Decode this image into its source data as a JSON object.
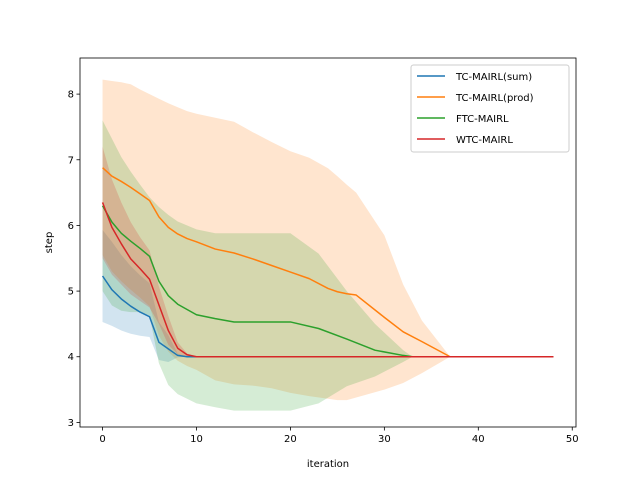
{
  "chart_data": {
    "type": "line",
    "title": "",
    "xlabel": "iteration",
    "ylabel": "step",
    "xlim": [
      -2.4,
      50.4
    ],
    "ylim": [
      2.93,
      8.55
    ],
    "xticks": [
      0,
      10,
      20,
      30,
      40,
      50
    ],
    "yticks": [
      3,
      4,
      5,
      6,
      7,
      8
    ],
    "grid": false,
    "legend_position": "upper right",
    "series": [
      {
        "name": "TC-MAIRL(sum)",
        "color": "#1f77b4",
        "x": [
          0,
          1,
          2,
          3,
          4,
          5,
          6,
          7,
          8,
          9,
          10,
          48
        ],
        "mean": [
          5.23,
          5.02,
          4.88,
          4.77,
          4.68,
          4.61,
          4.22,
          4.12,
          4.02,
          4.0,
          4.0,
          4.0
        ],
        "upper": [
          5.93,
          5.75,
          5.55,
          5.38,
          5.24,
          5.12,
          4.53,
          4.33,
          4.05,
          4.0,
          4.0,
          4.0
        ],
        "lower": [
          4.53,
          4.47,
          4.4,
          4.35,
          4.32,
          4.3,
          3.95,
          3.92,
          3.99,
          4.0,
          4.0,
          4.0
        ]
      },
      {
        "name": "TC-MAIRL(prod)",
        "color": "#ff7f0e",
        "x": [
          0,
          1,
          2,
          3,
          4,
          5,
          6,
          7,
          8,
          9,
          10,
          12,
          14,
          16,
          18,
          20,
          22,
          24,
          25,
          26,
          27,
          30,
          32,
          34,
          37,
          48
        ],
        "mean": [
          6.88,
          6.75,
          6.67,
          6.58,
          6.48,
          6.38,
          6.13,
          5.97,
          5.87,
          5.8,
          5.75,
          5.64,
          5.58,
          5.49,
          5.39,
          5.29,
          5.19,
          5.04,
          4.99,
          4.96,
          4.94,
          4.6,
          4.38,
          4.23,
          4.0,
          4.0
        ],
        "upper": [
          8.22,
          8.2,
          8.18,
          8.15,
          8.07,
          8.0,
          7.93,
          7.86,
          7.8,
          7.74,
          7.7,
          7.64,
          7.58,
          7.42,
          7.27,
          7.13,
          7.03,
          6.87,
          6.75,
          6.62,
          6.5,
          5.85,
          5.1,
          4.55,
          4.0,
          4.0
        ],
        "lower": [
          5.55,
          5.3,
          5.15,
          5.02,
          4.9,
          4.77,
          4.32,
          4.08,
          3.94,
          3.86,
          3.8,
          3.64,
          3.58,
          3.56,
          3.52,
          3.45,
          3.4,
          3.36,
          3.34,
          3.34,
          3.38,
          3.5,
          3.6,
          3.75,
          4.0,
          4.0
        ]
      },
      {
        "name": "FTC-MAIRL",
        "color": "#2ca02c",
        "x": [
          0,
          1,
          2,
          3,
          4,
          5,
          6,
          7,
          8,
          10,
          12,
          14,
          16,
          18,
          20,
          23,
          26,
          29,
          32,
          33,
          48
        ],
        "mean": [
          6.3,
          6.05,
          5.88,
          5.76,
          5.65,
          5.53,
          5.15,
          4.93,
          4.8,
          4.64,
          4.58,
          4.53,
          4.53,
          4.53,
          4.53,
          4.43,
          4.27,
          4.1,
          4.02,
          4.0,
          4.0
        ],
        "upper": [
          7.6,
          7.32,
          7.04,
          6.82,
          6.62,
          6.43,
          6.28,
          6.16,
          6.06,
          5.94,
          5.88,
          5.88,
          5.88,
          5.88,
          5.88,
          5.57,
          5.0,
          4.5,
          4.1,
          4.0,
          4.0
        ],
        "lower": [
          5.0,
          4.78,
          4.7,
          4.68,
          4.68,
          4.63,
          3.9,
          3.57,
          3.43,
          3.29,
          3.23,
          3.18,
          3.18,
          3.18,
          3.18,
          3.29,
          3.55,
          3.7,
          3.92,
          4.0,
          4.0
        ]
      },
      {
        "name": "WTC-MAIRL",
        "color": "#d62728",
        "x": [
          0,
          1,
          2,
          3,
          4,
          5,
          6,
          7,
          8,
          9,
          10,
          48
        ],
        "mean": [
          6.35,
          5.97,
          5.72,
          5.49,
          5.34,
          5.18,
          4.79,
          4.4,
          4.13,
          4.03,
          4.0,
          4.0
        ],
        "upper": [
          7.2,
          6.7,
          6.35,
          6.05,
          5.82,
          5.62,
          5.07,
          4.62,
          4.22,
          4.05,
          4.0,
          4.0
        ],
        "lower": [
          5.5,
          5.25,
          5.1,
          4.95,
          4.85,
          4.75,
          4.5,
          4.18,
          4.04,
          4.0,
          4.0,
          4.0
        ]
      }
    ]
  }
}
